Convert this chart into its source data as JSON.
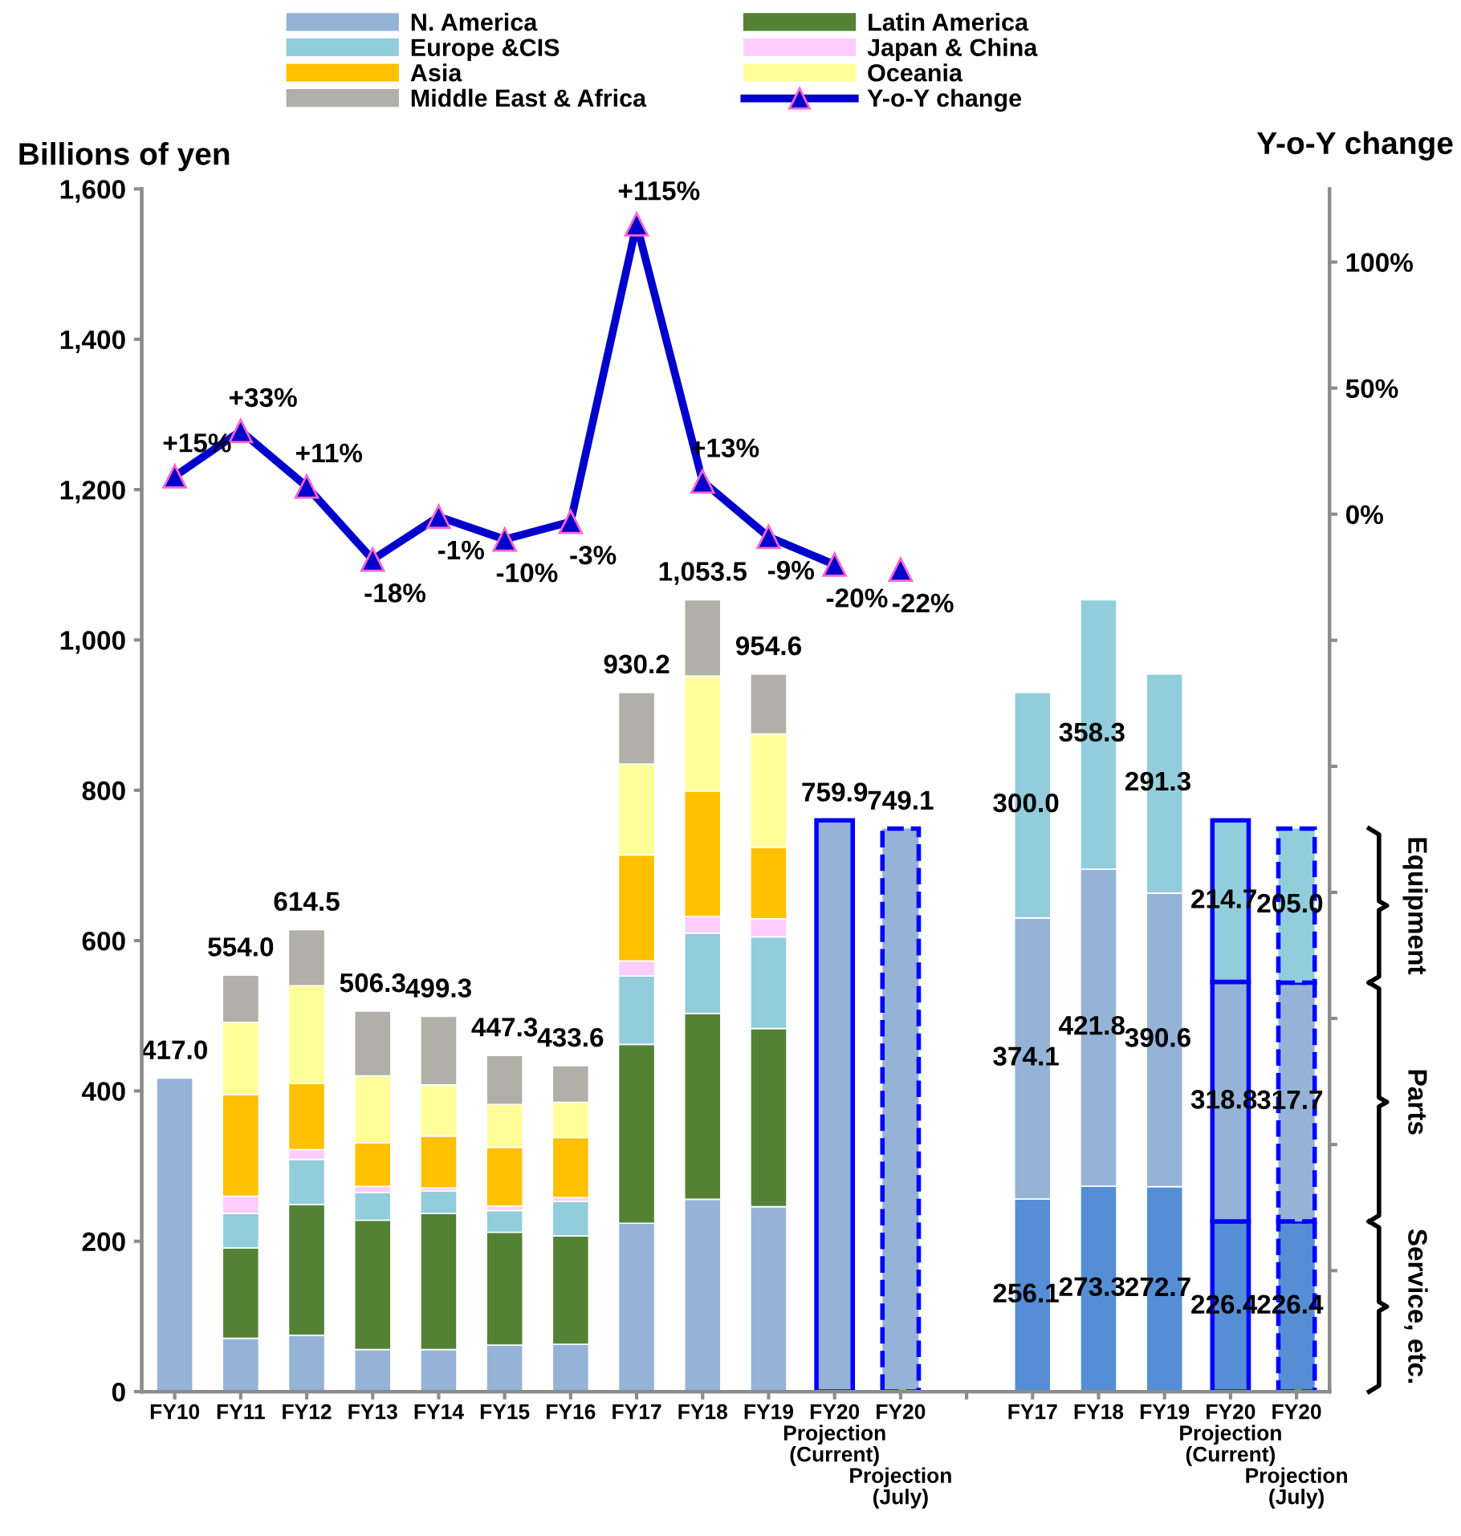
{
  "chart_data": {
    "type": "bar",
    "stacked": true,
    "legend": "top",
    "marker": "triangle",
    "grid": false,
    "ylabel": "Billions of yen",
    "y2label": "Y-o-Y change",
    "categories": [
      "FY10",
      "FY11",
      "FY12",
      "FY13",
      "FY14",
      "FY15",
      "FY16",
      "FY17",
      "FY18",
      "FY19",
      "FY20\nProjection\n(Current)",
      "FY20\nProjection\n(July)",
      null,
      "FY17",
      "FY18",
      "FY19",
      "FY20\nProjection\n(Current)",
      "FY20\nProjection\n(July)"
    ],
    "ylim": [
      0,
      1600
    ],
    "yticks": [
      0,
      200,
      400,
      600,
      800,
      {
        "value": 1000,
        "label": "1,000"
      },
      {
        "value": 1200,
        "label": "1,200"
      },
      {
        "value": 1400,
        "label": "1,400"
      },
      {
        "value": 1600,
        "label": "1,600"
      }
    ],
    "y2lim": [
      -348,
      129
    ],
    "y2ticks": [
      {
        "value": -300,
        "label": null
      },
      {
        "value": -250,
        "label": null
      },
      {
        "value": -200,
        "label": null
      },
      {
        "value": -150,
        "label": null
      },
      {
        "value": -100,
        "label": null
      },
      {
        "value": -50,
        "label": null
      },
      {
        "value": 0,
        "label": "0%"
      },
      {
        "value": 50,
        "label": "50%"
      },
      {
        "value": 100,
        "label": "100%"
      }
    ],
    "series": [
      {
        "name": "N. America",
        "color": "#95b3d7",
        "values": [
          417,
          71,
          75,
          56,
          56,
          62,
          63,
          224,
          256,
          246,
          null,
          null,
          null,
          null,
          null,
          null,
          null,
          null
        ]
      },
      {
        "name": "Latin America",
        "color": "#548235",
        "values": [
          null,
          120,
          174,
          172,
          181,
          150,
          144,
          238,
          247,
          237,
          null,
          null,
          null,
          null,
          null,
          null,
          null,
          null
        ]
      },
      {
        "name": "Europe &CIS",
        "color": "#92cddc",
        "values": [
          null,
          46,
          60,
          37,
          30,
          29,
          46,
          91,
          107,
          122,
          null,
          null,
          null,
          null,
          null,
          null,
          null,
          null
        ]
      },
      {
        "name": "Japan & China",
        "color": "#ffccff",
        "values": [
          null,
          23,
          13,
          8,
          4,
          6,
          5,
          20,
          22,
          24,
          null,
          null,
          null,
          null,
          null,
          null,
          null,
          null
        ]
      },
      {
        "name": "Asia",
        "color": "#ffc000",
        "values": [
          null,
          135,
          88,
          58,
          69,
          78,
          80,
          141,
          167,
          95,
          null,
          null,
          null,
          null,
          null,
          null,
          null,
          null
        ]
      },
      {
        "name": "Oceania",
        "color": "#ffff99",
        "values": [
          null,
          96,
          130,
          89,
          68,
          57,
          47,
          121,
          153,
          151,
          null,
          null,
          null,
          null,
          null,
          null,
          null,
          null
        ]
      },
      {
        "name": "Middle East & Africa",
        "color": "#b0b0a8",
        "values": [
          null,
          63.0,
          74.5,
          86.3,
          91.3,
          65.3,
          48.6,
          95.2,
          101.5,
          79.6,
          null,
          null,
          null,
          null,
          null,
          null,
          null,
          null
        ]
      },
      {
        "color": "#95b3d7",
        "line_style": [
          null,
          null,
          null,
          null,
          null,
          null,
          null,
          null,
          null,
          null,
          "solid",
          "dashed",
          null,
          null,
          null,
          null,
          null,
          null
        ],
        "values": [
          null,
          null,
          null,
          null,
          null,
          null,
          null,
          null,
          null,
          null,
          759.9,
          749.1,
          null,
          null,
          null,
          null,
          null,
          null
        ]
      },
      {
        "color": "#558ed5",
        "line_style": [
          null,
          null,
          null,
          null,
          null,
          null,
          null,
          null,
          null,
          null,
          null,
          null,
          null,
          null,
          null,
          null,
          "solid",
          "dashed"
        ],
        "values": [
          null,
          null,
          null,
          null,
          null,
          null,
          null,
          null,
          null,
          null,
          null,
          null,
          null,
          256.1,
          273.3,
          272.7,
          226.4,
          226.4
        ],
        "value_labels": [
          null,
          null,
          null,
          null,
          null,
          null,
          null,
          null,
          null,
          null,
          null,
          null,
          null,
          "256.1",
          "273.3",
          "272.7",
          "226.4",
          "226.4"
        ]
      },
      {
        "color": "#95b3d7",
        "line_style": [
          null,
          null,
          null,
          null,
          null,
          null,
          null,
          null,
          null,
          null,
          null,
          null,
          null,
          null,
          null,
          null,
          "solid",
          "dashed"
        ],
        "values": [
          null,
          null,
          null,
          null,
          null,
          null,
          null,
          null,
          null,
          null,
          null,
          null,
          null,
          374.1,
          421.8,
          390.6,
          318.8,
          317.7
        ],
        "value_labels": [
          null,
          null,
          null,
          null,
          null,
          null,
          null,
          null,
          null,
          null,
          null,
          null,
          null,
          "374.1",
          "421.8",
          "390.6",
          "318.8",
          "317.7"
        ]
      },
      {
        "color": "#92cddc",
        "line_style": [
          null,
          null,
          null,
          null,
          null,
          null,
          null,
          null,
          null,
          null,
          null,
          null,
          null,
          null,
          null,
          null,
          "solid",
          "dashed"
        ],
        "values": [
          null,
          null,
          null,
          null,
          null,
          null,
          null,
          null,
          null,
          null,
          null,
          null,
          null,
          300.0,
          358.3,
          291.3,
          214.7,
          205.0
        ],
        "value_labels": [
          null,
          null,
          null,
          null,
          null,
          null,
          null,
          null,
          null,
          null,
          null,
          null,
          null,
          "300.0",
          "358.3",
          "291.3",
          "214.7",
          "205.0"
        ]
      },
      {
        "name": "Y-o-Y change",
        "type": "line",
        "axis": "y2",
        "color": "#0000cc",
        "values": [
          15,
          33,
          11,
          -18,
          -1,
          -10,
          -3,
          115,
          13,
          -9,
          -20,
          null,
          null,
          null,
          null,
          null,
          null,
          null
        ],
        "value_labels": [
          "+15%",
          "+33%",
          "+11%",
          "-18%",
          "-1%",
          "-10%",
          "-3%",
          "+115%",
          "+13%",
          "-9%",
          "-20%",
          null,
          null,
          null,
          null,
          null,
          null,
          null
        ]
      },
      {
        "type": "scatter",
        "axis": "y2",
        "color": "#0000cc",
        "values": [
          null,
          null,
          null,
          null,
          null,
          null,
          null,
          null,
          null,
          null,
          null,
          -22,
          null,
          null,
          null,
          null,
          null,
          null
        ],
        "value_labels": [
          null,
          null,
          null,
          null,
          null,
          null,
          null,
          null,
          null,
          null,
          null,
          "-22%",
          null,
          null,
          null,
          null,
          null,
          null
        ]
      }
    ],
    "totals": [
      "417.0",
      "554.0",
      "614.5",
      "506.3",
      "499.3",
      "447.3",
      "433.6",
      "930.2",
      "1,053.5",
      "954.6",
      "759.9",
      "749.1",
      null,
      null,
      null,
      null,
      null,
      null
    ],
    "annotations": [
      "Service, etc.",
      "Parts",
      "Equipment"
    ]
  }
}
